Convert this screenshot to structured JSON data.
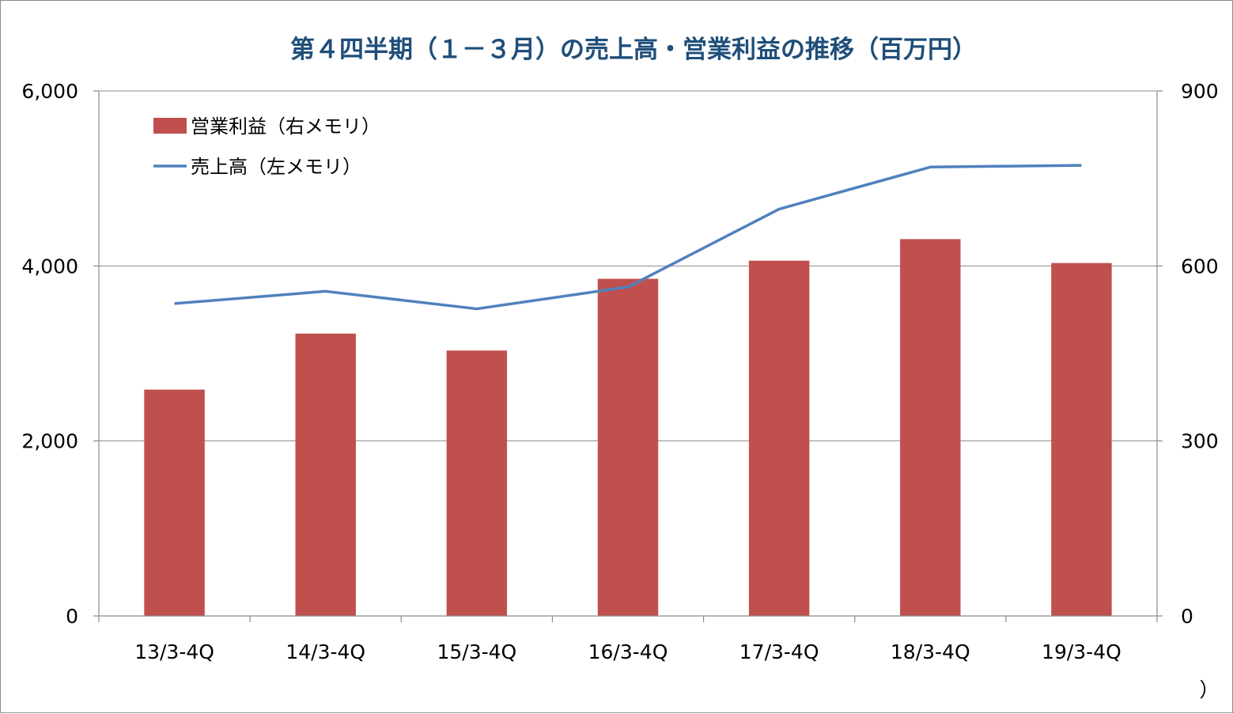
{
  "chart_data": {
    "type": "bar",
    "title": "第４四半期（１－３月）の売上高・営業利益の推移（百万円）",
    "categories": [
      "13/3-4Q",
      "14/3-4Q",
      "15/3-4Q",
      "16/3-4Q",
      "17/3-4Q",
      "18/3-4Q",
      "19/3-4Q"
    ],
    "series": [
      {
        "name": "営業利益（右メモリ）",
        "type": "bar",
        "axis": "right",
        "color": "#c0504d",
        "values": [
          388,
          484,
          455,
          578,
          609,
          646,
          605
        ]
      },
      {
        "name": "売上高（左メモリ）",
        "type": "line",
        "axis": "left",
        "color": "#4f81bd",
        "values": [
          3570,
          3710,
          3510,
          3760,
          4650,
          5130,
          5150
        ]
      }
    ],
    "y_left": {
      "ylim": [
        0,
        6000
      ],
      "ticks": [
        0,
        2000,
        4000,
        6000
      ],
      "tick_labels": [
        "0",
        "2,000",
        "4,000",
        "6,000"
      ]
    },
    "y_right": {
      "ylim": [
        0,
        900
      ],
      "ticks": [
        0,
        300,
        600,
        900
      ],
      "tick_labels": [
        "0",
        "300",
        "600",
        "900"
      ]
    },
    "grid": true,
    "legend_position": "top-left",
    "footnote": "）"
  }
}
